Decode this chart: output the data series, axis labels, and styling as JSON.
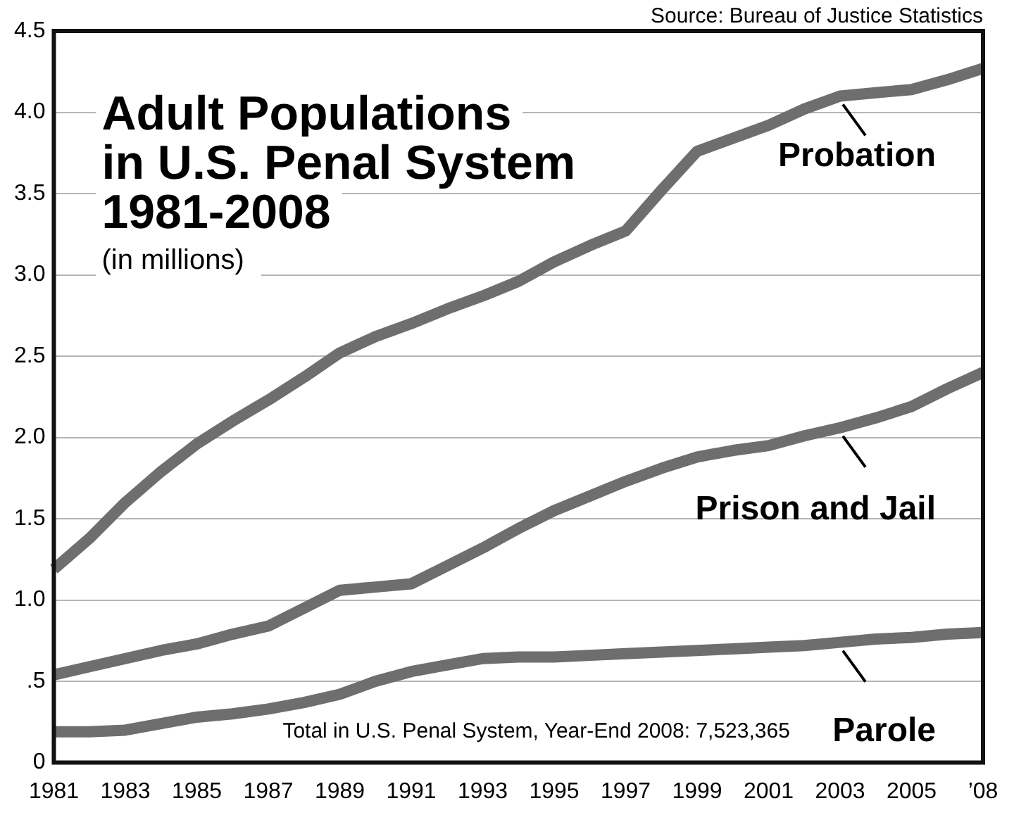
{
  "chart_data": {
    "type": "line",
    "title": "Adult Populations\nin U.S. Penal System\n1981-2008",
    "subtitle": "(in millions)",
    "categories": [
      "1981",
      null,
      "1983",
      null,
      "1985",
      null,
      "1987",
      null,
      "1989",
      null,
      "1991",
      null,
      "1993",
      null,
      "1995",
      null,
      "1997",
      null,
      "1999",
      null,
      "2001",
      null,
      "2003",
      null,
      "2005",
      null,
      "’08"
    ],
    "series": [
      {
        "name": "Probation",
        "color": "#6e6e6e",
        "values": [
          1.19,
          1.38,
          1.6,
          1.79,
          1.96,
          2.1,
          2.23,
          2.37,
          2.52,
          2.62,
          2.7,
          2.79,
          2.87,
          2.96,
          3.08,
          3.18,
          3.27,
          3.52,
          3.76,
          3.84,
          3.92,
          4.02,
          4.1,
          4.12,
          4.14,
          4.2,
          4.27
        ]
      },
      {
        "name": "Prison and Jail",
        "color": "#6e6e6e",
        "values": [
          0.54,
          0.59,
          0.64,
          0.69,
          0.73,
          0.79,
          0.84,
          0.95,
          1.06,
          1.08,
          1.1,
          1.21,
          1.32,
          1.44,
          1.55,
          1.64,
          1.73,
          1.81,
          1.88,
          1.92,
          1.95,
          2.01,
          2.06,
          2.12,
          2.19,
          2.3,
          2.4
        ]
      },
      {
        "name": "Parole",
        "color": "#6e6e6e",
        "values": [
          0.19,
          0.19,
          0.2,
          0.24,
          0.28,
          0.3,
          0.33,
          0.37,
          0.42,
          0.5,
          0.56,
          0.6,
          0.64,
          0.65,
          0.65,
          0.66,
          0.67,
          0.68,
          0.69,
          0.7,
          0.71,
          0.72,
          0.74,
          0.76,
          0.77,
          0.79,
          0.8
        ]
      }
    ],
    "ylim": [
      0,
      4.5
    ],
    "yticks": [
      0,
      {
        "value": 0.5,
        "label": ".5"
      },
      {
        "value": 1,
        "label": "1.0"
      },
      1.5,
      {
        "value": 2,
        "label": "2.0"
      },
      2.5,
      {
        "value": 3,
        "label": "3.0"
      },
      3.5,
      {
        "value": 4,
        "label": "4.0"
      },
      4.5
    ],
    "grid": "y",
    "legend": false,
    "marker": "none",
    "line_style": "solid",
    "annotations": [
      "Source: Bureau of Justice Statistics",
      "Total in U.S. Penal System, Year-End 2008: 7,523,365"
    ]
  }
}
